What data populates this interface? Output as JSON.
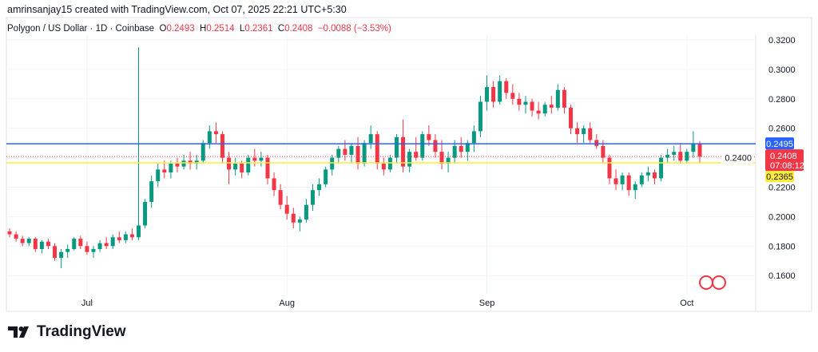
{
  "credit": "amrinsanjay15 created with TradingView.com, Oct 07, 2025 22:21 UTC+5:30",
  "legend": {
    "symbol": "Polygon / US Dollar · 1D · Coinbase",
    "o_label": "O",
    "o": "0.2493",
    "h_label": "H",
    "h": "0.2514",
    "l_label": "L",
    "l": "0.2361",
    "c_label": "C",
    "c": "0.2408",
    "change": "−0.0088 (−3.53%)"
  },
  "logo": "TradingView",
  "colors": {
    "up": "#089981",
    "down": "#f23645",
    "blue_line": "#2962ff",
    "yellow_line": "#ffeb3b"
  },
  "chart_data": {
    "type": "candlestick",
    "title": "Polygon / US Dollar · 1D · Coinbase",
    "ylim": [
      0.15,
      0.33
    ],
    "yticks": [
      "0.3200",
      "0.3000",
      "0.2800",
      "0.2600",
      "0.2400",
      "0.2200",
      "0.2000",
      "0.1800",
      "0.1600"
    ],
    "xticks": [
      {
        "label": "Jul",
        "index": 12
      },
      {
        "label": "Aug",
        "index": 43
      },
      {
        "label": "Sep",
        "index": 74
      },
      {
        "label": "Oct",
        "index": 105
      }
    ],
    "hlines": [
      {
        "value": 0.2495,
        "label": "0.2495",
        "color": "#2962ff"
      },
      {
        "value": 0.2365,
        "label": "0.2365",
        "color": "#ffeb3b"
      }
    ],
    "last": {
      "value": 0.2408,
      "label": "0.2408",
      "countdown": "07:08:12"
    },
    "candles": [
      [
        0.19,
        0.192,
        0.186,
        0.188
      ],
      [
        0.188,
        0.19,
        0.183,
        0.185
      ],
      [
        0.185,
        0.187,
        0.18,
        0.182
      ],
      [
        0.182,
        0.186,
        0.18,
        0.185
      ],
      [
        0.185,
        0.186,
        0.176,
        0.178
      ],
      [
        0.178,
        0.184,
        0.175,
        0.183
      ],
      [
        0.183,
        0.185,
        0.178,
        0.18
      ],
      [
        0.18,
        0.182,
        0.17,
        0.172
      ],
      [
        0.172,
        0.178,
        0.165,
        0.176
      ],
      [
        0.176,
        0.181,
        0.172,
        0.178
      ],
      [
        0.178,
        0.186,
        0.177,
        0.185
      ],
      [
        0.185,
        0.187,
        0.178,
        0.18
      ],
      [
        0.18,
        0.183,
        0.174,
        0.176
      ],
      [
        0.176,
        0.18,
        0.172,
        0.178
      ],
      [
        0.178,
        0.184,
        0.176,
        0.182
      ],
      [
        0.182,
        0.186,
        0.178,
        0.18
      ],
      [
        0.18,
        0.188,
        0.178,
        0.186
      ],
      [
        0.186,
        0.19,
        0.182,
        0.184
      ],
      [
        0.184,
        0.19,
        0.182,
        0.188
      ],
      [
        0.188,
        0.192,
        0.184,
        0.186
      ],
      [
        0.186,
        0.315,
        0.184,
        0.194
      ],
      [
        0.194,
        0.212,
        0.192,
        0.21
      ],
      [
        0.21,
        0.228,
        0.206,
        0.224
      ],
      [
        0.224,
        0.236,
        0.22,
        0.232
      ],
      [
        0.232,
        0.238,
        0.226,
        0.23
      ],
      [
        0.23,
        0.238,
        0.226,
        0.236
      ],
      [
        0.236,
        0.24,
        0.23,
        0.234
      ],
      [
        0.234,
        0.242,
        0.232,
        0.238
      ],
      [
        0.238,
        0.244,
        0.232,
        0.236
      ],
      [
        0.236,
        0.242,
        0.232,
        0.238
      ],
      [
        0.238,
        0.252,
        0.236,
        0.25
      ],
      [
        0.25,
        0.262,
        0.246,
        0.258
      ],
      [
        0.258,
        0.264,
        0.25,
        0.256
      ],
      [
        0.256,
        0.258,
        0.236,
        0.24
      ],
      [
        0.24,
        0.244,
        0.222,
        0.232
      ],
      [
        0.232,
        0.24,
        0.228,
        0.236
      ],
      [
        0.236,
        0.238,
        0.226,
        0.23
      ],
      [
        0.23,
        0.242,
        0.228,
        0.24
      ],
      [
        0.24,
        0.246,
        0.234,
        0.238
      ],
      [
        0.238,
        0.244,
        0.234,
        0.24
      ],
      [
        0.24,
        0.242,
        0.222,
        0.226
      ],
      [
        0.226,
        0.23,
        0.214,
        0.218
      ],
      [
        0.218,
        0.222,
        0.205,
        0.208
      ],
      [
        0.208,
        0.214,
        0.198,
        0.202
      ],
      [
        0.202,
        0.206,
        0.192,
        0.196
      ],
      [
        0.196,
        0.2,
        0.19,
        0.198
      ],
      [
        0.198,
        0.212,
        0.196,
        0.208
      ],
      [
        0.208,
        0.222,
        0.204,
        0.218
      ],
      [
        0.218,
        0.226,
        0.214,
        0.222
      ],
      [
        0.222,
        0.234,
        0.22,
        0.232
      ],
      [
        0.232,
        0.242,
        0.228,
        0.24
      ],
      [
        0.24,
        0.248,
        0.236,
        0.246
      ],
      [
        0.246,
        0.252,
        0.238,
        0.242
      ],
      [
        0.242,
        0.25,
        0.236,
        0.248
      ],
      [
        0.248,
        0.254,
        0.232,
        0.236
      ],
      [
        0.236,
        0.252,
        0.234,
        0.25
      ],
      [
        0.25,
        0.262,
        0.246,
        0.256
      ],
      [
        0.256,
        0.258,
        0.232,
        0.236
      ],
      [
        0.236,
        0.24,
        0.228,
        0.232
      ],
      [
        0.232,
        0.242,
        0.23,
        0.24
      ],
      [
        0.24,
        0.256,
        0.236,
        0.254
      ],
      [
        0.254,
        0.266,
        0.23,
        0.234
      ],
      [
        0.234,
        0.246,
        0.23,
        0.244
      ],
      [
        0.244,
        0.254,
        0.238,
        0.24
      ],
      [
        0.24,
        0.258,
        0.238,
        0.256
      ],
      [
        0.256,
        0.262,
        0.248,
        0.252
      ],
      [
        0.252,
        0.256,
        0.24,
        0.244
      ],
      [
        0.244,
        0.252,
        0.232,
        0.236
      ],
      [
        0.236,
        0.244,
        0.23,
        0.24
      ],
      [
        0.24,
        0.252,
        0.236,
        0.248
      ],
      [
        0.248,
        0.254,
        0.24,
        0.244
      ],
      [
        0.244,
        0.252,
        0.238,
        0.25
      ],
      [
        0.25,
        0.262,
        0.244,
        0.258
      ],
      [
        0.258,
        0.282,
        0.254,
        0.278
      ],
      [
        0.278,
        0.296,
        0.272,
        0.288
      ],
      [
        0.288,
        0.292,
        0.274,
        0.278
      ],
      [
        0.278,
        0.296,
        0.276,
        0.292
      ],
      [
        0.292,
        0.294,
        0.28,
        0.284
      ],
      [
        0.284,
        0.29,
        0.276,
        0.28
      ],
      [
        0.28,
        0.284,
        0.272,
        0.276
      ],
      [
        0.276,
        0.282,
        0.27,
        0.278
      ],
      [
        0.278,
        0.28,
        0.268,
        0.272
      ],
      [
        0.272,
        0.278,
        0.266,
        0.27
      ],
      [
        0.27,
        0.278,
        0.268,
        0.276
      ],
      [
        0.276,
        0.282,
        0.27,
        0.274
      ],
      [
        0.274,
        0.29,
        0.272,
        0.286
      ],
      [
        0.286,
        0.288,
        0.27,
        0.274
      ],
      [
        0.274,
        0.276,
        0.256,
        0.26
      ],
      [
        0.26,
        0.264,
        0.25,
        0.256
      ],
      [
        0.256,
        0.262,
        0.25,
        0.26
      ],
      [
        0.26,
        0.264,
        0.25,
        0.252
      ],
      [
        0.252,
        0.256,
        0.246,
        0.248
      ],
      [
        0.248,
        0.252,
        0.236,
        0.24
      ],
      [
        0.24,
        0.242,
        0.222,
        0.226
      ],
      [
        0.226,
        0.232,
        0.218,
        0.222
      ],
      [
        0.222,
        0.23,
        0.218,
        0.228
      ],
      [
        0.228,
        0.23,
        0.214,
        0.218
      ],
      [
        0.218,
        0.224,
        0.212,
        0.222
      ],
      [
        0.222,
        0.23,
        0.22,
        0.228
      ],
      [
        0.228,
        0.234,
        0.224,
        0.23
      ],
      [
        0.23,
        0.232,
        0.222,
        0.226
      ],
      [
        0.226,
        0.242,
        0.224,
        0.24
      ],
      [
        0.24,
        0.246,
        0.236,
        0.242
      ],
      [
        0.242,
        0.248,
        0.238,
        0.244
      ],
      [
        0.244,
        0.25,
        0.236,
        0.238
      ],
      [
        0.238,
        0.246,
        0.236,
        0.244
      ],
      [
        0.244,
        0.258,
        0.24,
        0.2493
      ],
      [
        0.2493,
        0.2514,
        0.2361,
        0.2408
      ]
    ]
  }
}
